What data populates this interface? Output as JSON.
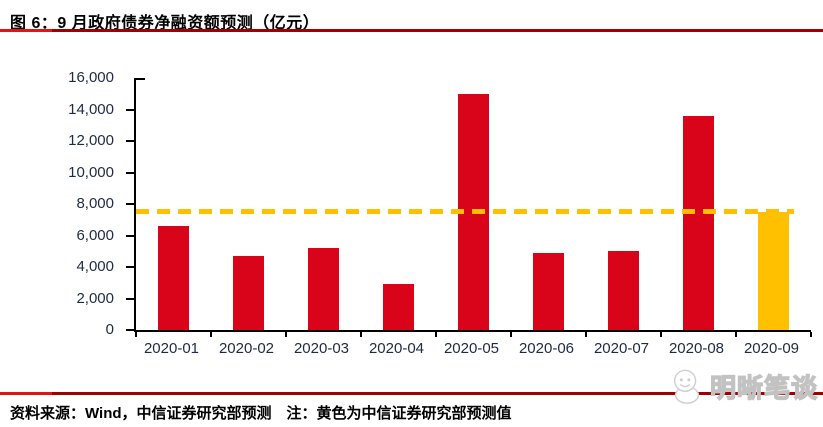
{
  "figure": {
    "title": "图 6：9 月政府债券净融资额预测（亿元）",
    "source_note": "资料来源：Wind，中信证券研究部预测　注：黄色为中信证券研究部预测值",
    "watermark": "明晰笔谈"
  },
  "colors": {
    "bar_red": "#d9041a",
    "forecast_yellow": "#ffc000",
    "divider_dark_red": "#a00000",
    "divider_bright_red": "#e31414",
    "axis_text": "#1f2a44",
    "axis_line": "#000000",
    "watermark_gray": "#c8c8c8"
  },
  "chart_data": {
    "type": "bar",
    "title": "9 月政府债券净融资额预测（亿元）",
    "categories": [
      "2020-01",
      "2020-02",
      "2020-03",
      "2020-04",
      "2020-05",
      "2020-06",
      "2020-07",
      "2020-08",
      "2020-09"
    ],
    "values": [
      6600,
      4700,
      5200,
      2900,
      15000,
      4900,
      5000,
      13600,
      7500
    ],
    "bar_colors": [
      "#d9041a",
      "#d9041a",
      "#d9041a",
      "#d9041a",
      "#d9041a",
      "#d9041a",
      "#d9041a",
      "#d9041a",
      "#ffc000"
    ],
    "highlight_index": 8,
    "highlight_meaning": "黄色为中信证券研究部预测值",
    "reference_line": {
      "value": 7500,
      "style": "dashed",
      "color": "#ffc000"
    },
    "ylim": [
      0,
      16000
    ],
    "ytick_step": 2000,
    "ytick_labels": [
      "16,000",
      "14,000",
      "12,000",
      "10,000",
      "8,000",
      "6,000",
      "4,000",
      "2,000",
      "0"
    ],
    "xlabel": "",
    "ylabel": "",
    "grid": false,
    "legend": "none"
  }
}
